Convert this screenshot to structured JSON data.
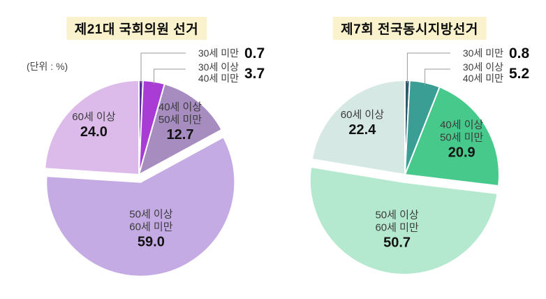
{
  "page": {
    "unit_label": "(단위 : %)",
    "title_highlight_color": "#faf2cc",
    "background_color": "#ffffff",
    "callout_line_color": "#9a9a9a"
  },
  "chart_data": [
    {
      "type": "pie",
      "title": "제21대 국회의원 선거",
      "unit": "(단위 : %)",
      "start_angle": "12-oclock",
      "direction": "clockwise",
      "legend_position": "none",
      "slices": [
        {
          "label": "30세 미만",
          "label_lines": [
            "30세 미만"
          ],
          "value": 0.7,
          "value_label": "0.7",
          "color": "#5a2c9e",
          "callout": true,
          "exploded": false
        },
        {
          "label": "30세 이상 40세 미만",
          "label_lines": [
            "30세 이상",
            "40세 미만"
          ],
          "value": 3.7,
          "value_label": "3.7",
          "color": "#a93cd4",
          "callout": true,
          "exploded": false
        },
        {
          "label": "40세 이상 50세 미만",
          "label_lines": [
            "40세 이상",
            "50세 미만"
          ],
          "value": 12.7,
          "value_label": "12.7",
          "color": "#a78cc0",
          "callout": false,
          "exploded": false
        },
        {
          "label": "50세 이상 60세 미만",
          "label_lines": [
            "50세 이상",
            "60세 미만"
          ],
          "value": 59.0,
          "value_label": "59.0",
          "color": "#c4abe4",
          "callout": false,
          "exploded": true
        },
        {
          "label": "60세 이상",
          "label_lines": [
            "60세 이상"
          ],
          "value": 24.0,
          "value_label": "24.0",
          "color": "#dcbae9",
          "callout": false,
          "exploded": false
        }
      ]
    },
    {
      "type": "pie",
      "title": "제7회 전국동시지방선거",
      "unit": "",
      "start_angle": "12-oclock",
      "direction": "clockwise",
      "legend_position": "none",
      "slices": [
        {
          "label": "30세 미만",
          "label_lines": [
            "30세 미만"
          ],
          "value": 0.8,
          "value_label": "0.8",
          "color": "#2e5a70",
          "callout": true,
          "exploded": false
        },
        {
          "label": "30세 이상 40세 미만",
          "label_lines": [
            "30세 이상",
            "40세 미만"
          ],
          "value": 5.2,
          "value_label": "5.2",
          "color": "#3b9e94",
          "callout": true,
          "exploded": false
        },
        {
          "label": "40세 이상 50세 미만",
          "label_lines": [
            "40세 이상",
            "50세 미만"
          ],
          "value": 20.9,
          "value_label": "20.9",
          "color": "#47c98c",
          "callout": false,
          "exploded": false
        },
        {
          "label": "50세 이상 60세 미만",
          "label_lines": [
            "50세 이상",
            "60세 미만"
          ],
          "value": 50.7,
          "value_label": "50.7",
          "color": "#b4e9cf",
          "callout": false,
          "exploded": true
        },
        {
          "label": "60세 이상",
          "label_lines": [
            "60세 이상"
          ],
          "value": 22.4,
          "value_label": "22.4",
          "color": "#d6e8e3",
          "callout": false,
          "exploded": false
        }
      ]
    }
  ]
}
